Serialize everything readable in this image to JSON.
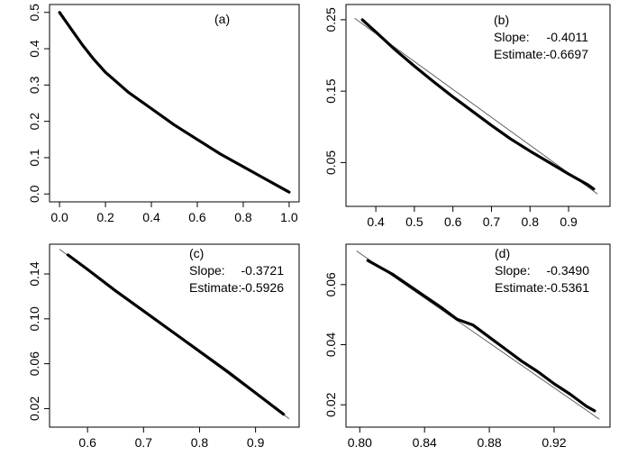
{
  "chart_data": [
    {
      "type": "line",
      "panel_label": "(a)",
      "xlim": [
        0.0,
        1.0
      ],
      "ylim": [
        0.0,
        0.5
      ],
      "x_ticks": [
        "0.0",
        "0.2",
        "0.4",
        "0.6",
        "0.8",
        "1.0"
      ],
      "y_ticks": [
        "0.0",
        "0.1",
        "0.2",
        "0.3",
        "0.4",
        "0.5"
      ],
      "series": [
        {
          "x": [
            0.0,
            0.05,
            0.1,
            0.15,
            0.2,
            0.3,
            0.4,
            0.5,
            0.6,
            0.7,
            0.8,
            0.9,
            1.0
          ],
          "values": [
            0.5,
            0.455,
            0.41,
            0.37,
            0.335,
            0.28,
            0.235,
            0.19,
            0.15,
            0.11,
            0.075,
            0.04,
            0.005
          ]
        }
      ]
    },
    {
      "type": "line",
      "panel_label": "(b)",
      "xlim": [
        0.35,
        0.98
      ],
      "ylim": [
        0.0,
        0.26
      ],
      "x_ticks": [
        "0.4",
        "0.5",
        "0.6",
        "0.7",
        "0.8",
        "0.9"
      ],
      "y_ticks": [
        "0.05",
        "0.15",
        "0.25"
      ],
      "slope_label": "Slope:",
      "slope_value": "-0.4011",
      "estimate_label": "Estimate:",
      "estimate_value": "-0.6697",
      "series": [
        {
          "x": [
            0.365,
            0.4,
            0.45,
            0.5,
            0.55,
            0.6,
            0.65,
            0.7,
            0.75,
            0.8,
            0.85,
            0.9,
            0.95,
            0.965
          ],
          "values": [
            0.25,
            0.233,
            0.208,
            0.185,
            0.163,
            0.142,
            0.122,
            0.102,
            0.083,
            0.066,
            0.05,
            0.034,
            0.019,
            0.013
          ]
        }
      ],
      "reference_line": {
        "x": [
          0.345,
          0.975
        ],
        "values": [
          0.252,
          0.006
        ]
      }
    },
    {
      "type": "line",
      "panel_label": "(c)",
      "xlim": [
        0.55,
        0.96
      ],
      "ylim": [
        0.01,
        0.16
      ],
      "x_ticks": [
        "0.6",
        "0.7",
        "0.8",
        "0.9"
      ],
      "y_ticks": [
        "0.02",
        "0.06",
        "0.10",
        "0.14"
      ],
      "slope_label": "Slope:",
      "slope_value": "-0.3721",
      "estimate_label": "Estimate:",
      "estimate_value": "-0.5926",
      "series": [
        {
          "x": [
            0.565,
            0.6,
            0.65,
            0.7,
            0.75,
            0.8,
            0.85,
            0.9,
            0.95
          ],
          "values": [
            0.157,
            0.144,
            0.125,
            0.107,
            0.089,
            0.071,
            0.053,
            0.034,
            0.015
          ]
        }
      ],
      "reference_line": {
        "x": [
          0.55,
          0.96
        ],
        "values": [
          0.162,
          0.011
        ]
      }
    },
    {
      "type": "line",
      "panel_label": "(d)",
      "xlim": [
        0.798,
        0.948
      ],
      "ylim": [
        0.015,
        0.071
      ],
      "x_ticks": [
        "0.80",
        "0.84",
        "0.88",
        "0.92"
      ],
      "y_ticks": [
        "0.02",
        "0.04",
        "0.06"
      ],
      "slope_label": "Slope:",
      "slope_value": "-0.3490",
      "estimate_label": "Estimate:",
      "estimate_value": "-0.5361",
      "series": [
        {
          "x": [
            0.805,
            0.82,
            0.835,
            0.85,
            0.86,
            0.87,
            0.88,
            0.89,
            0.9,
            0.91,
            0.92,
            0.93,
            0.94,
            0.945
          ],
          "values": [
            0.068,
            0.0635,
            0.058,
            0.0525,
            0.0485,
            0.0465,
            0.0425,
            0.0385,
            0.0345,
            0.031,
            0.027,
            0.0235,
            0.0195,
            0.018
          ]
        }
      ],
      "reference_line": {
        "x": [
          0.798,
          0.948
        ],
        "values": [
          0.0712,
          0.0152
        ]
      }
    }
  ]
}
